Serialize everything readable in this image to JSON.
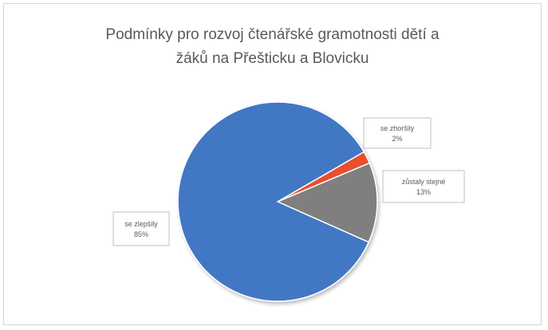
{
  "chart_data": {
    "type": "pie",
    "title_lines": [
      "Podmínky pro rozvoj čtenářské gramotnosti dětí a",
      "žáků na Přešticku a Blovicku"
    ],
    "slices": [
      {
        "label": "se zhoršily",
        "value": 2,
        "value_label": "2%",
        "color": "#e8502e"
      },
      {
        "label": "zůstaly stejné",
        "value": 13,
        "value_label": "13%",
        "color": "#7f7f7f"
      },
      {
        "label": "se zlepšily",
        "value": 85,
        "value_label": "85%",
        "color": "#4277c4"
      }
    ],
    "legend": "none",
    "data_labels": "callouts"
  }
}
